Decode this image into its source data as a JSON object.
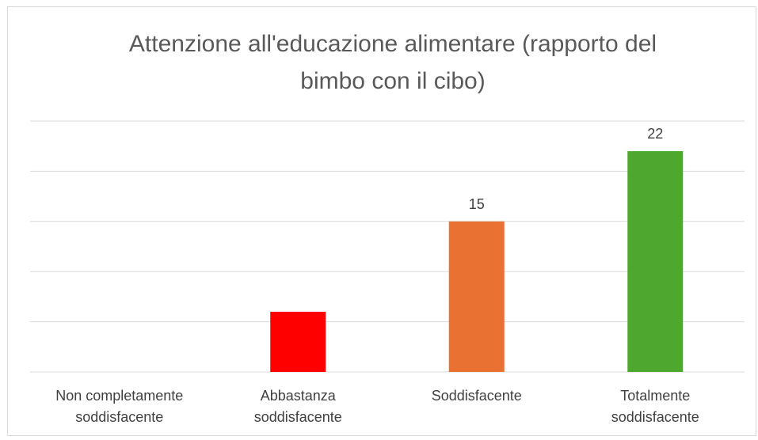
{
  "chart_data": {
    "type": "bar",
    "title": "Attenzione all'educazione alimentare (rapporto del bimbo con il cibo)",
    "categories": [
      "Non completamente soddisfacente",
      "Abbastanza soddisfacente",
      "Soddisfacente",
      "Totalmente soddisfacente"
    ],
    "values": [
      0,
      6,
      15,
      22
    ],
    "value_labels": [
      null,
      null,
      "15",
      "22"
    ],
    "colors": [
      null,
      "#ff0000",
      "#e97132",
      "#4ea72e"
    ],
    "ylim": [
      0,
      25
    ],
    "yticks": [
      0,
      5,
      10,
      15,
      20,
      25
    ],
    "grid": true
  }
}
